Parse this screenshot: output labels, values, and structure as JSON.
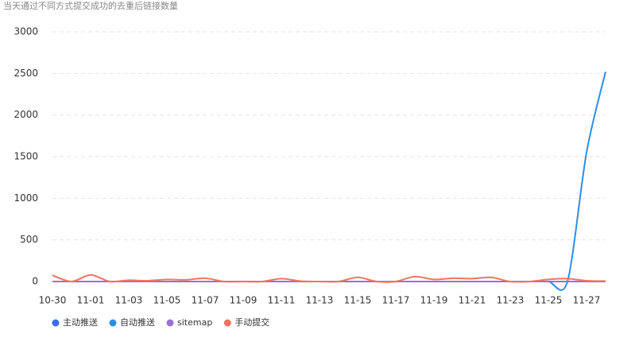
{
  "chart_data": {
    "type": "line",
    "title": "当天通过不同方式提交成功的去重后链接数量",
    "categories": [
      "10-30",
      null,
      "11-01",
      null,
      "11-03",
      null,
      "11-05",
      null,
      "11-07",
      null,
      "11-09",
      null,
      "11-11",
      null,
      "11-13",
      null,
      "11-15",
      null,
      "11-17",
      null,
      "11-19",
      null,
      "11-21",
      null,
      "11-23",
      null,
      "11-25",
      null,
      "11-27",
      null
    ],
    "series": [
      {
        "name": "主动推送",
        "color": "#3a6fdf",
        "values": [
          0,
          0,
          0,
          0,
          0,
          0,
          0,
          0,
          0,
          0,
          0,
          0,
          0,
          0,
          0,
          0,
          0,
          0,
          0,
          0,
          0,
          0,
          0,
          0,
          0,
          0,
          0,
          0,
          0,
          0
        ]
      },
      {
        "name": "自动推送",
        "color": "#2d8ee8",
        "values": [
          0,
          0,
          0,
          0,
          0,
          0,
          0,
          0,
          0,
          0,
          0,
          0,
          0,
          0,
          0,
          0,
          0,
          0,
          0,
          0,
          0,
          0,
          0,
          0,
          0,
          0,
          0,
          0,
          1550,
          2520
        ]
      },
      {
        "name": "sitemap",
        "color": "#9a6fd6",
        "values": [
          0,
          0,
          0,
          0,
          0,
          0,
          0,
          0,
          0,
          0,
          0,
          0,
          0,
          0,
          0,
          0,
          0,
          0,
          0,
          0,
          0,
          0,
          0,
          0,
          0,
          0,
          0,
          0,
          0,
          0
        ]
      },
      {
        "name": "手动提交",
        "color": "#f2735f",
        "values": [
          75,
          0,
          80,
          0,
          15,
          10,
          25,
          20,
          40,
          0,
          0,
          0,
          35,
          5,
          0,
          0,
          50,
          0,
          0,
          60,
          25,
          40,
          35,
          50,
          0,
          0,
          25,
          35,
          10,
          5
        ]
      }
    ],
    "ylim": [
      0,
      3000
    ],
    "yticks": [
      0,
      500,
      1000,
      1500,
      2000,
      2500,
      3000
    ],
    "grid": true,
    "smooth": true
  }
}
